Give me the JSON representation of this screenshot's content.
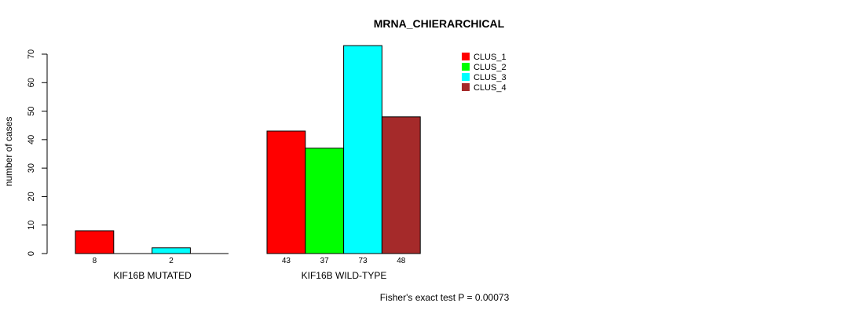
{
  "chart_data": {
    "type": "bar",
    "title": "MRNA_CHIERARCHICAL",
    "xlabel": "",
    "ylabel": "number of cases",
    "ylim": [
      0,
      70
    ],
    "yticks": [
      0,
      10,
      20,
      30,
      40,
      50,
      60,
      70
    ],
    "categories": [
      "KIF16B MUTATED",
      "KIF16B WILD-TYPE"
    ],
    "series": [
      {
        "name": "CLUS_1",
        "color": "#ff0000",
        "values": [
          8,
          43
        ],
        "labels": [
          "8",
          "43"
        ]
      },
      {
        "name": "CLUS_2",
        "color": "#00ff00",
        "values": [
          0,
          37
        ],
        "labels": [
          "",
          "37"
        ]
      },
      {
        "name": "CLUS_3",
        "color": "#00ffff",
        "values": [
          2,
          73
        ],
        "labels": [
          "2",
          "73"
        ]
      },
      {
        "name": "CLUS_4",
        "color": "#a52a2a",
        "values": [
          0,
          48
        ],
        "labels": [
          "",
          "48"
        ]
      }
    ],
    "legend_position": "top-right",
    "footnote": "Fisher's exact test P = 0.00073"
  }
}
